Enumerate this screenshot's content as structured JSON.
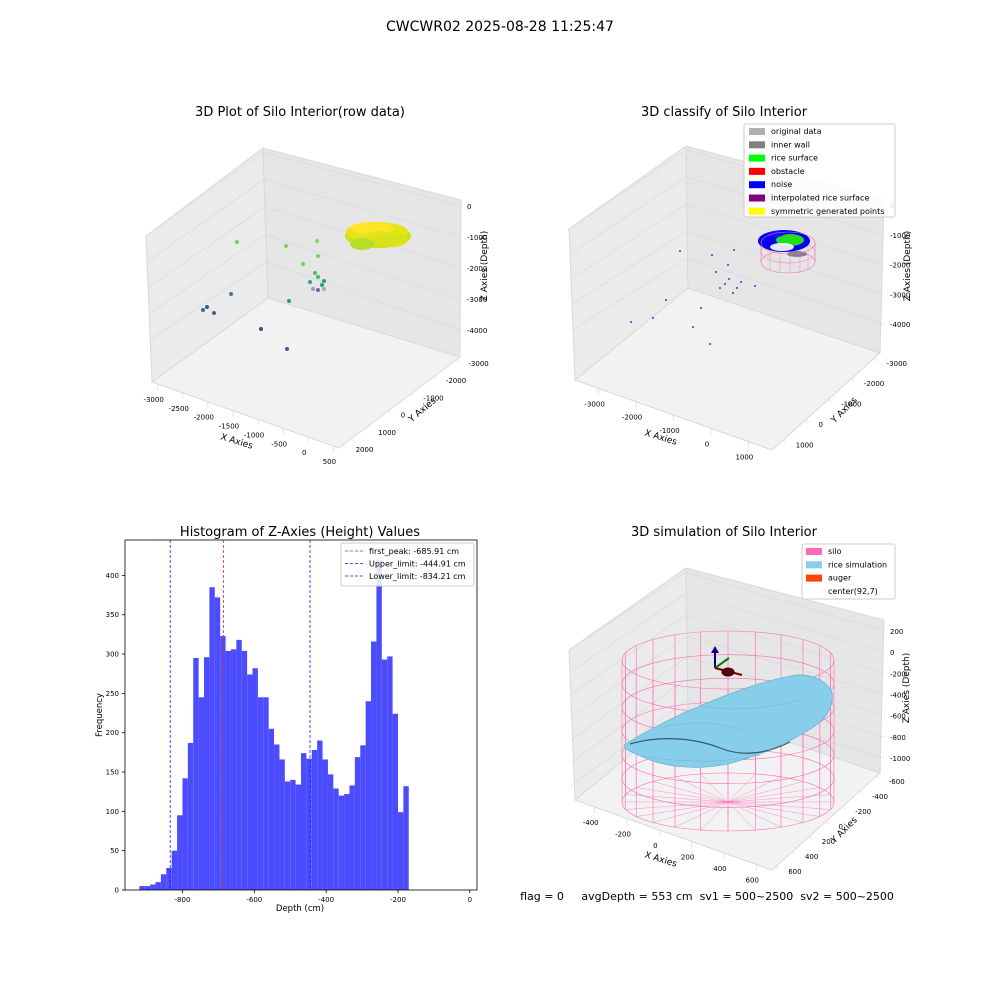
{
  "suptitle": "CWCWR02 2025-08-28 11:25:47",
  "colors": {
    "hist_bar": "#4c4cff",
    "peak_line": "#e03030",
    "limit_line": "#1a1aff",
    "silo": "#ff69b4",
    "rice": "#87ceeb",
    "auger": "#ff4500",
    "grid": "#d9d9d9",
    "pane": "#f2f2f2"
  },
  "panel1": {
    "title": "3D Plot of Silo Interior(row data)",
    "xlabel": "X Axies",
    "ylabel": "Y Axies",
    "zlabel": "Z Axies (Depth)",
    "xticks": [
      "-3000",
      "-2500",
      "-2000",
      "-1500",
      "-1000",
      "-500",
      "0",
      "500"
    ],
    "yticks": [
      "2000",
      "1000",
      "0",
      "-1000",
      "-2000",
      "-3000"
    ],
    "zticks": [
      "0",
      "-1000",
      "-2000",
      "-3000",
      "-4000"
    ]
  },
  "panel2": {
    "title": "3D classify of Silo Interior",
    "xlabel": "X Axies",
    "ylabel": "Y Axies",
    "zlabel": "Z Axies (Depth)",
    "xticks": [
      "-3000",
      "-2000",
      "-1000",
      "0",
      "1000"
    ],
    "yticks": [
      "1000",
      "0",
      "-1000",
      "-2000",
      "-3000"
    ],
    "zticks": [
      "0",
      "-1000",
      "-2000",
      "-3000",
      "-4000"
    ],
    "legend": [
      {
        "label": "original data",
        "color": "#b0b0b0"
      },
      {
        "label": "inner wall",
        "color": "#808080"
      },
      {
        "label": "rice surface",
        "color": "#00ff00"
      },
      {
        "label": "obstacle",
        "color": "#ff0000"
      },
      {
        "label": "noise",
        "color": "#0000ff"
      },
      {
        "label": "interpolated rice surface",
        "color": "#800080"
      },
      {
        "label": "symmetric generated points",
        "color": "#ffff00"
      }
    ]
  },
  "panel4": {
    "title": "3D simulation of Silo Interior",
    "xlabel": "X Axies",
    "ylabel": "Y Axies",
    "zlabel": "Z Axies (Depth)",
    "xticks": [
      "-400",
      "-200",
      "0",
      "200",
      "400",
      "600"
    ],
    "yticks": [
      "600",
      "400",
      "200",
      "0",
      "-200",
      "-400",
      "-600"
    ],
    "zticks": [
      "200",
      "0",
      "-200",
      "-400",
      "-600",
      "-800",
      "-1000"
    ],
    "legend": [
      {
        "label": "silo",
        "color": "#ff69b4"
      },
      {
        "label": "rice simulation",
        "color": "#87ceeb"
      },
      {
        "label": "auger",
        "color": "#ff4500"
      },
      {
        "label": "center(92,7)",
        "color": ""
      }
    ]
  },
  "status_text": "flag = 0     avgDepth = 553 cm  sv1 = 500~2500  sv2 = 500~2500",
  "chart_data": {
    "type": "bar",
    "title": "Histogram of Z-Axies (Height) Values",
    "xlabel": "Depth (cm)",
    "ylabel": "Frequency",
    "xlim": [
      -960,
      20
    ],
    "ylim": [
      0,
      445
    ],
    "xticks": [
      -800,
      -600,
      -400,
      -200,
      0
    ],
    "yticks": [
      0,
      50,
      100,
      150,
      200,
      250,
      300,
      350,
      400
    ],
    "bin_start": -920,
    "bin_width": 15,
    "values": [
      5,
      5,
      7,
      10,
      20,
      28,
      50,
      95,
      142,
      187,
      295,
      245,
      296,
      385,
      372,
      323,
      304,
      306,
      318,
      304,
      274,
      282,
      245,
      245,
      205,
      185,
      166,
      138,
      140,
      134,
      174,
      167,
      178,
      190,
      166,
      147,
      129,
      120,
      122,
      133,
      169,
      184,
      240,
      316,
      420,
      293,
      297,
      224,
      99,
      132
    ],
    "lines": [
      {
        "label": "first_peak: -685.91 cm",
        "x": -685.91,
        "color": "#e03030"
      },
      {
        "label": "Upper_limit: -444.91 cm",
        "x": -444.91,
        "color": "#1a1aff"
      },
      {
        "label": "Lower_limit: -834.21 cm",
        "x": -834.21,
        "color": "#1a1aff"
      }
    ]
  }
}
